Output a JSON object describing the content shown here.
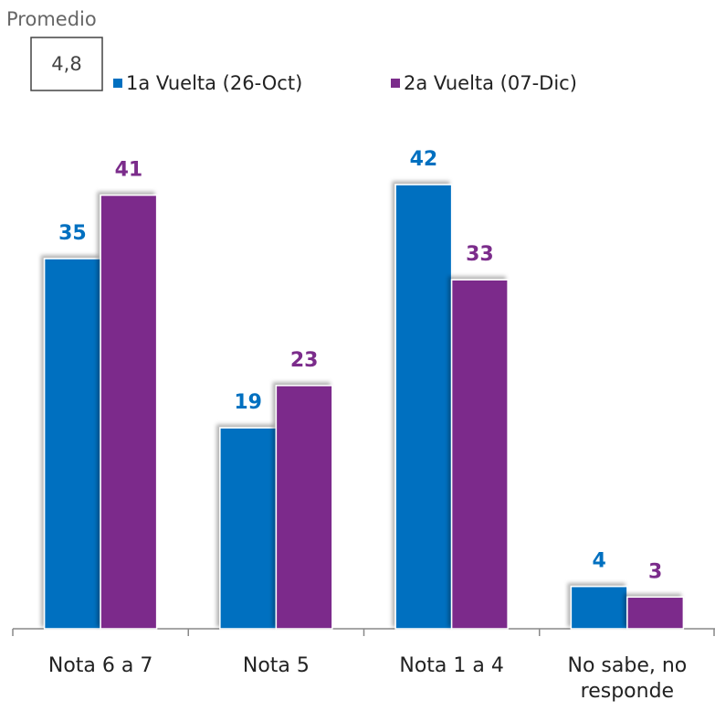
{
  "chart_data": {
    "type": "bar",
    "title": "Promedio",
    "average": "4,8",
    "categories": [
      "Nota 6 a 7",
      "Nota 5",
      "Nota 1 a 4",
      "No sabe, no responde"
    ],
    "series": [
      {
        "name": "1a Vuelta (26-Oct)",
        "color": "#0070c0",
        "values": [
          35,
          19,
          42,
          4
        ]
      },
      {
        "name": "2a Vuelta (07-Dic)",
        "color": "#7b2c8b",
        "values": [
          41,
          23,
          33,
          3
        ]
      }
    ],
    "ylim": [
      0,
      42
    ]
  }
}
